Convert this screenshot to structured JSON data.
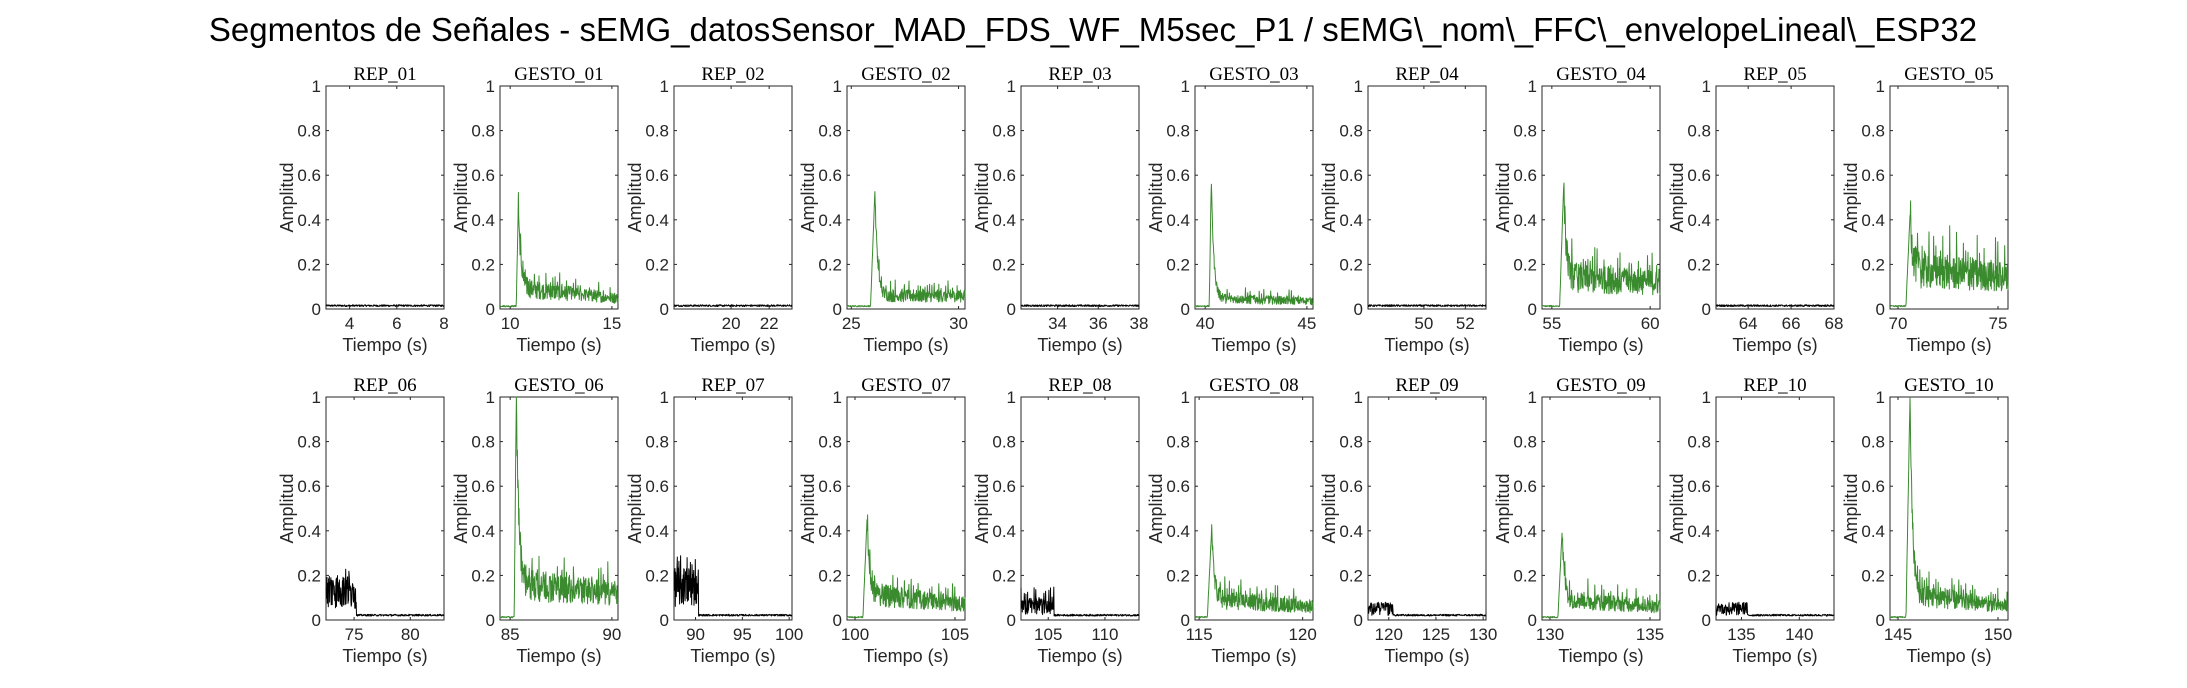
{
  "title": "Segmentos de Señales - sEMG_datosSensor_MAD_FDS_WF_M5sec_P1 / sEMG\\_nom\\_FFC\\_envelopeLineal\\_ESP32",
  "colors": {
    "rep": "#000000",
    "gesto": "#3a8a2e"
  },
  "chart_data": [
    {
      "type": "line",
      "title": "REP_01",
      "xlabel": "Tiempo (s)",
      "ylabel": "Amplitud",
      "xlim": [
        3,
        8
      ],
      "ylim": [
        0,
        1
      ],
      "xticks": [
        4,
        6,
        8
      ],
      "yticks": [
        0,
        0.2,
        0.4,
        0.6,
        0.8,
        1
      ],
      "color": "#000000",
      "series": [
        {
          "x": [
            3,
            8
          ],
          "y": [
            0.015,
            0.015
          ],
          "level": 0.015
        }
      ]
    },
    {
      "type": "line",
      "title": "GESTO_01",
      "xlabel": "Tiempo (s)",
      "ylabel": "Amplitud",
      "xlim": [
        9.5,
        15.3
      ],
      "ylim": [
        0,
        1
      ],
      "xticks": [
        10,
        15
      ],
      "yticks": [
        0,
        0.2,
        0.4,
        0.6,
        0.8,
        1
      ],
      "color": "#3a8a2e",
      "series": [
        {
          "onset": 10.3,
          "peak_x": 10.4,
          "peak": 0.46,
          "level": 0.08,
          "end_level": 0.04
        }
      ]
    },
    {
      "type": "line",
      "title": "REP_02",
      "xlabel": "Tiempo (s)",
      "ylabel": "Amplitud",
      "xlim": [
        17,
        23.2
      ],
      "ylim": [
        0,
        1
      ],
      "xticks": [
        20,
        22
      ],
      "yticks": [
        0,
        0.2,
        0.4,
        0.6,
        0.8,
        1
      ],
      "color": "#000000",
      "series": [
        {
          "x": [
            17,
            23.2
          ],
          "y": [
            0.015,
            0.015
          ],
          "level": 0.015
        }
      ]
    },
    {
      "type": "line",
      "title": "GESTO_02",
      "xlabel": "Tiempo (s)",
      "ylabel": "Amplitud",
      "xlim": [
        24.8,
        30.3
      ],
      "ylim": [
        0,
        1
      ],
      "xticks": [
        25,
        30
      ],
      "yticks": [
        0,
        0.2,
        0.4,
        0.6,
        0.8,
        1
      ],
      "color": "#3a8a2e",
      "series": [
        {
          "onset": 25.9,
          "peak_x": 26.1,
          "peak": 0.53,
          "level": 0.05,
          "end_level": 0.05
        }
      ]
    },
    {
      "type": "line",
      "title": "REP_03",
      "xlabel": "Tiempo (s)",
      "ylabel": "Amplitud",
      "xlim": [
        32.2,
        38
      ],
      "ylim": [
        0,
        1
      ],
      "xticks": [
        34,
        36,
        38
      ],
      "yticks": [
        0,
        0.2,
        0.4,
        0.6,
        0.8,
        1
      ],
      "color": "#000000",
      "series": [
        {
          "x": [
            32.2,
            38
          ],
          "y": [
            0.015,
            0.015
          ],
          "level": 0.015
        }
      ]
    },
    {
      "type": "line",
      "title": "GESTO_03",
      "xlabel": "Tiempo (s)",
      "ylabel": "Amplitud",
      "xlim": [
        39.5,
        45.3
      ],
      "ylim": [
        0,
        1
      ],
      "xticks": [
        40,
        45
      ],
      "yticks": [
        0,
        0.2,
        0.4,
        0.6,
        0.8,
        1
      ],
      "color": "#3a8a2e",
      "series": [
        {
          "onset": 40.2,
          "peak_x": 40.3,
          "peak": 0.58,
          "level": 0.04,
          "end_level": 0.03
        }
      ]
    },
    {
      "type": "line",
      "title": "REP_04",
      "xlabel": "Tiempo (s)",
      "ylabel": "Amplitud",
      "xlim": [
        47.3,
        53
      ],
      "ylim": [
        0,
        1
      ],
      "xticks": [
        50,
        52
      ],
      "yticks": [
        0,
        0.2,
        0.4,
        0.6,
        0.8,
        1
      ],
      "color": "#000000",
      "series": [
        {
          "x": [
            47.3,
            53
          ],
          "y": [
            0.015,
            0.015
          ],
          "level": 0.015
        }
      ]
    },
    {
      "type": "line",
      "title": "GESTO_04",
      "xlabel": "Tiempo (s)",
      "ylabel": "Amplitud",
      "xlim": [
        54.5,
        60.5
      ],
      "ylim": [
        0,
        1
      ],
      "xticks": [
        55,
        60
      ],
      "yticks": [
        0,
        0.2,
        0.4,
        0.6,
        0.8,
        1
      ],
      "color": "#3a8a2e",
      "series": [
        {
          "onset": 55.4,
          "peak_x": 55.6,
          "peak": 0.55,
          "level": 0.12,
          "end_level": 0.1
        }
      ]
    },
    {
      "type": "line",
      "title": "REP_05",
      "xlabel": "Tiempo (s)",
      "ylabel": "Amplitud",
      "xlim": [
        62.5,
        68
      ],
      "ylim": [
        0,
        1
      ],
      "xticks": [
        64,
        66,
        68
      ],
      "yticks": [
        0,
        0.2,
        0.4,
        0.6,
        0.8,
        1
      ],
      "color": "#000000",
      "series": [
        {
          "x": [
            62.5,
            68
          ],
          "y": [
            0.015,
            0.015
          ],
          "level": 0.015
        }
      ]
    },
    {
      "type": "line",
      "title": "GESTO_05",
      "xlabel": "Tiempo (s)",
      "ylabel": "Amplitud",
      "xlim": [
        69.6,
        75.5
      ],
      "ylim": [
        0,
        1
      ],
      "xticks": [
        70,
        75
      ],
      "yticks": [
        0,
        0.2,
        0.4,
        0.6,
        0.8,
        1
      ],
      "color": "#3a8a2e",
      "series": [
        {
          "onset": 70.4,
          "peak_x": 70.6,
          "peak": 0.42,
          "level": 0.15,
          "end_level": 0.12
        }
      ]
    },
    {
      "type": "line",
      "title": "REP_06",
      "xlabel": "Tiempo (s)",
      "ylabel": "Amplitud",
      "xlim": [
        72.5,
        83
      ],
      "ylim": [
        0,
        1
      ],
      "xticks": [
        75,
        80
      ],
      "yticks": [
        0,
        0.2,
        0.4,
        0.6,
        0.8,
        1
      ],
      "color": "#000000",
      "series": [
        {
          "active_end": 75.2,
          "active_level": 0.13,
          "peak": 0.23,
          "level": 0.02
        }
      ]
    },
    {
      "type": "line",
      "title": "GESTO_06",
      "xlabel": "Tiempo (s)",
      "ylabel": "Amplitud",
      "xlim": [
        84.5,
        90.3
      ],
      "ylim": [
        0,
        1
      ],
      "xticks": [
        85,
        90
      ],
      "yticks": [
        0,
        0.2,
        0.4,
        0.6,
        0.8,
        1
      ],
      "color": "#3a8a2e",
      "series": [
        {
          "onset": 85.2,
          "peak_x": 85.3,
          "peak": 1.0,
          "level": 0.14,
          "end_level": 0.1
        }
      ]
    },
    {
      "type": "line",
      "title": "REP_07",
      "xlabel": "Tiempo (s)",
      "ylabel": "Amplitud",
      "xlim": [
        87.7,
        100.3
      ],
      "ylim": [
        0,
        1
      ],
      "xticks": [
        90,
        95,
        100
      ],
      "yticks": [
        0,
        0.2,
        0.4,
        0.6,
        0.8,
        1
      ],
      "color": "#000000",
      "series": [
        {
          "active_end": 90.3,
          "active_level": 0.15,
          "peak": 0.29,
          "level": 0.02
        }
      ]
    },
    {
      "type": "line",
      "title": "GESTO_07",
      "xlabel": "Tiempo (s)",
      "ylabel": "Amplitud",
      "xlim": [
        99.6,
        105.5
      ],
      "ylim": [
        0,
        1
      ],
      "xticks": [
        100,
        105
      ],
      "yticks": [
        0,
        0.2,
        0.4,
        0.6,
        0.8,
        1
      ],
      "color": "#3a8a2e",
      "series": [
        {
          "onset": 100.4,
          "peak_x": 100.6,
          "peak": 0.45,
          "level": 0.1,
          "end_level": 0.06
        }
      ]
    },
    {
      "type": "line",
      "title": "REP_08",
      "xlabel": "Tiempo (s)",
      "ylabel": "Amplitud",
      "xlim": [
        102.6,
        113
      ],
      "ylim": [
        0,
        1
      ],
      "xticks": [
        105,
        110
      ],
      "yticks": [
        0,
        0.2,
        0.4,
        0.6,
        0.8,
        1
      ],
      "color": "#000000",
      "series": [
        {
          "active_end": 105.5,
          "active_level": 0.06,
          "peak": 0.15,
          "level": 0.02
        }
      ]
    },
    {
      "type": "line",
      "title": "GESTO_08",
      "xlabel": "Tiempo (s)",
      "ylabel": "Amplitud",
      "xlim": [
        114.8,
        120.5
      ],
      "ylim": [
        0,
        1
      ],
      "xticks": [
        115,
        120
      ],
      "yticks": [
        0,
        0.2,
        0.4,
        0.6,
        0.8,
        1
      ],
      "color": "#3a8a2e",
      "series": [
        {
          "onset": 115.4,
          "peak_x": 115.6,
          "peak": 0.4,
          "level": 0.08,
          "end_level": 0.05
        }
      ]
    },
    {
      "type": "line",
      "title": "REP_09",
      "xlabel": "Tiempo (s)",
      "ylabel": "Amplitud",
      "xlim": [
        117.8,
        130.3
      ],
      "ylim": [
        0,
        1
      ],
      "xticks": [
        120,
        125,
        130
      ],
      "yticks": [
        0,
        0.2,
        0.4,
        0.6,
        0.8,
        1
      ],
      "color": "#000000",
      "series": [
        {
          "active_end": 120.5,
          "active_level": 0.05,
          "peak": 0.08,
          "level": 0.02
        }
      ]
    },
    {
      "type": "line",
      "title": "GESTO_09",
      "xlabel": "Tiempo (s)",
      "ylabel": "Amplitud",
      "xlim": [
        129.6,
        135.5
      ],
      "ylim": [
        0,
        1
      ],
      "xticks": [
        130,
        135
      ],
      "yticks": [
        0,
        0.2,
        0.4,
        0.6,
        0.8,
        1
      ],
      "color": "#3a8a2e",
      "series": [
        {
          "onset": 130.4,
          "peak_x": 130.6,
          "peak": 0.39,
          "level": 0.08,
          "end_level": 0.05
        }
      ]
    },
    {
      "type": "line",
      "title": "REP_10",
      "xlabel": "Tiempo (s)",
      "ylabel": "Amplitud",
      "xlim": [
        132.8,
        143
      ],
      "ylim": [
        0,
        1
      ],
      "xticks": [
        135,
        140
      ],
      "yticks": [
        0,
        0.2,
        0.4,
        0.6,
        0.8,
        1
      ],
      "color": "#000000",
      "series": [
        {
          "active_end": 135.5,
          "active_level": 0.05,
          "peak": 0.08,
          "level": 0.02
        }
      ]
    },
    {
      "type": "line",
      "title": "GESTO_10",
      "xlabel": "Tiempo (s)",
      "ylabel": "Amplitud",
      "xlim": [
        144.6,
        150.5
      ],
      "ylim": [
        0,
        1
      ],
      "xticks": [
        145,
        150
      ],
      "yticks": [
        0,
        0.2,
        0.4,
        0.6,
        0.8,
        1
      ],
      "color": "#3a8a2e",
      "series": [
        {
          "onset": 145.4,
          "peak_x": 145.6,
          "peak": 1.0,
          "level": 0.1,
          "end_level": 0.05
        }
      ]
    }
  ]
}
